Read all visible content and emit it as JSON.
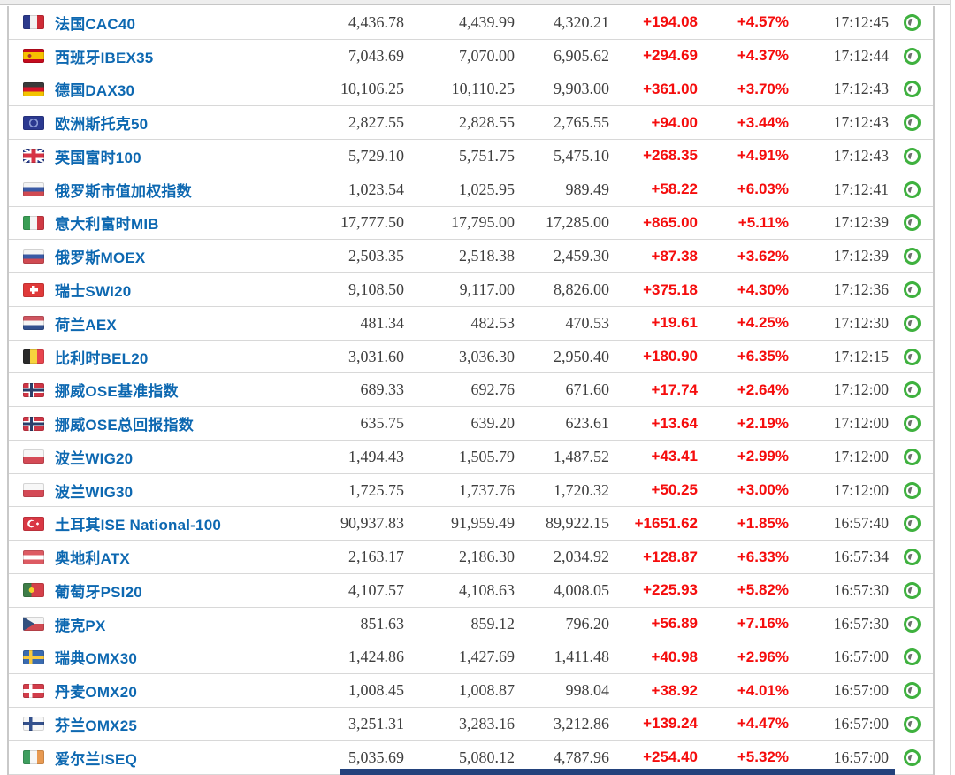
{
  "colors": {
    "name_blue": "#0d68b1",
    "change_red": "#f50d0d",
    "clock_green": "#3fb13f",
    "bottom_bar_navy": "#23427c",
    "row_separator": "#d8d8d8"
  },
  "icons": {
    "row_status": "clock-icon"
  },
  "table": {
    "rows": [
      {
        "flag": "fr",
        "flag_icon": "france-flag-icon",
        "name": "法国CAC40",
        "last": "4,436.78",
        "high": "4,439.99",
        "low": "4,320.21",
        "change": "+194.08",
        "change_pct": "+4.57%",
        "time": "17:12:45"
      },
      {
        "flag": "es",
        "flag_icon": "spain-flag-icon",
        "name": "西班牙IBEX35",
        "last": "7,043.69",
        "high": "7,070.00",
        "low": "6,905.62",
        "change": "+294.69",
        "change_pct": "+4.37%",
        "time": "17:12:44"
      },
      {
        "flag": "de",
        "flag_icon": "germany-flag-icon",
        "name": "德国DAX30",
        "last": "10,106.25",
        "high": "10,110.25",
        "low": "9,903.00",
        "change": "+361.00",
        "change_pct": "+3.70%",
        "time": "17:12:43"
      },
      {
        "flag": "eu",
        "flag_icon": "european-union-flag-icon",
        "name": "欧洲斯托克50",
        "last": "2,827.55",
        "high": "2,828.55",
        "low": "2,765.55",
        "change": "+94.00",
        "change_pct": "+3.44%",
        "time": "17:12:43"
      },
      {
        "flag": "gb",
        "flag_icon": "united-kingdom-flag-icon",
        "name": "英国富时100",
        "last": "5,729.10",
        "high": "5,751.75",
        "low": "5,475.10",
        "change": "+268.35",
        "change_pct": "+4.91%",
        "time": "17:12:43"
      },
      {
        "flag": "ru",
        "flag_icon": "russia-flag-icon",
        "name": "俄罗斯市值加权指数",
        "last": "1,023.54",
        "high": "1,025.95",
        "low": "989.49",
        "change": "+58.22",
        "change_pct": "+6.03%",
        "time": "17:12:41"
      },
      {
        "flag": "it",
        "flag_icon": "italy-flag-icon",
        "name": "意大利富时MIB",
        "last": "17,777.50",
        "high": "17,795.00",
        "low": "17,285.00",
        "change": "+865.00",
        "change_pct": "+5.11%",
        "time": "17:12:39"
      },
      {
        "flag": "ru",
        "flag_icon": "russia-flag-icon",
        "name": "俄罗斯MOEX",
        "last": "2,503.35",
        "high": "2,518.38",
        "low": "2,459.30",
        "change": "+87.38",
        "change_pct": "+3.62%",
        "time": "17:12:39"
      },
      {
        "flag": "ch",
        "flag_icon": "switzerland-flag-icon",
        "name": "瑞士SWI20",
        "last": "9,108.50",
        "high": "9,117.00",
        "low": "8,826.00",
        "change": "+375.18",
        "change_pct": "+4.30%",
        "time": "17:12:36"
      },
      {
        "flag": "nl",
        "flag_icon": "netherlands-flag-icon",
        "name": "荷兰AEX",
        "last": "481.34",
        "high": "482.53",
        "low": "470.53",
        "change": "+19.61",
        "change_pct": "+4.25%",
        "time": "17:12:30"
      },
      {
        "flag": "be",
        "flag_icon": "belgium-flag-icon",
        "name": "比利时BEL20",
        "last": "3,031.60",
        "high": "3,036.30",
        "low": "2,950.40",
        "change": "+180.90",
        "change_pct": "+6.35%",
        "time": "17:12:15"
      },
      {
        "flag": "no",
        "flag_icon": "norway-flag-icon",
        "name": "挪威OSE基准指数",
        "last": "689.33",
        "high": "692.76",
        "low": "671.60",
        "change": "+17.74",
        "change_pct": "+2.64%",
        "time": "17:12:00"
      },
      {
        "flag": "no",
        "flag_icon": "norway-flag-icon",
        "name": "挪威OSE总回报指数",
        "last": "635.75",
        "high": "639.20",
        "low": "623.61",
        "change": "+13.64",
        "change_pct": "+2.19%",
        "time": "17:12:00"
      },
      {
        "flag": "pl",
        "flag_icon": "poland-flag-icon",
        "name": "波兰WIG20",
        "last": "1,494.43",
        "high": "1,505.79",
        "low": "1,487.52",
        "change": "+43.41",
        "change_pct": "+2.99%",
        "time": "17:12:00"
      },
      {
        "flag": "pl",
        "flag_icon": "poland-flag-icon",
        "name": "波兰WIG30",
        "last": "1,725.75",
        "high": "1,737.76",
        "low": "1,720.32",
        "change": "+50.25",
        "change_pct": "+3.00%",
        "time": "17:12:00"
      },
      {
        "flag": "tr",
        "flag_icon": "turkey-flag-icon",
        "name": "土耳其ISE National-100",
        "last": "90,937.83",
        "high": "91,959.49",
        "low": "89,922.15",
        "change": "+1651.62",
        "change_pct": "+1.85%",
        "time": "16:57:40"
      },
      {
        "flag": "at",
        "flag_icon": "austria-flag-icon",
        "name": "奥地利ATX",
        "last": "2,163.17",
        "high": "2,186.30",
        "low": "2,034.92",
        "change": "+128.87",
        "change_pct": "+6.33%",
        "time": "16:57:34"
      },
      {
        "flag": "pt",
        "flag_icon": "portugal-flag-icon",
        "name": "葡萄牙PSI20",
        "last": "4,107.57",
        "high": "4,108.63",
        "low": "4,008.05",
        "change": "+225.93",
        "change_pct": "+5.82%",
        "time": "16:57:30"
      },
      {
        "flag": "cz",
        "flag_icon": "czech-republic-flag-icon",
        "name": "捷克PX",
        "last": "851.63",
        "high": "859.12",
        "low": "796.20",
        "change": "+56.89",
        "change_pct": "+7.16%",
        "time": "16:57:30"
      },
      {
        "flag": "se",
        "flag_icon": "sweden-flag-icon",
        "name": "瑞典OMX30",
        "last": "1,424.86",
        "high": "1,427.69",
        "low": "1,411.48",
        "change": "+40.98",
        "change_pct": "+2.96%",
        "time": "16:57:00"
      },
      {
        "flag": "dk",
        "flag_icon": "denmark-flag-icon",
        "name": "丹麦OMX20",
        "last": "1,008.45",
        "high": "1,008.87",
        "low": "998.04",
        "change": "+38.92",
        "change_pct": "+4.01%",
        "time": "16:57:00"
      },
      {
        "flag": "fi",
        "flag_icon": "finland-flag-icon",
        "name": "芬兰OMX25",
        "last": "3,251.31",
        "high": "3,283.16",
        "low": "3,212.86",
        "change": "+139.24",
        "change_pct": "+4.47%",
        "time": "16:57:00"
      },
      {
        "flag": "ie",
        "flag_icon": "ireland-flag-icon",
        "name": "爱尔兰ISEQ",
        "last": "5,035.69",
        "high": "5,080.12",
        "low": "4,787.96",
        "change": "+254.40",
        "change_pct": "+5.32%",
        "time": "16:57:00"
      }
    ]
  }
}
